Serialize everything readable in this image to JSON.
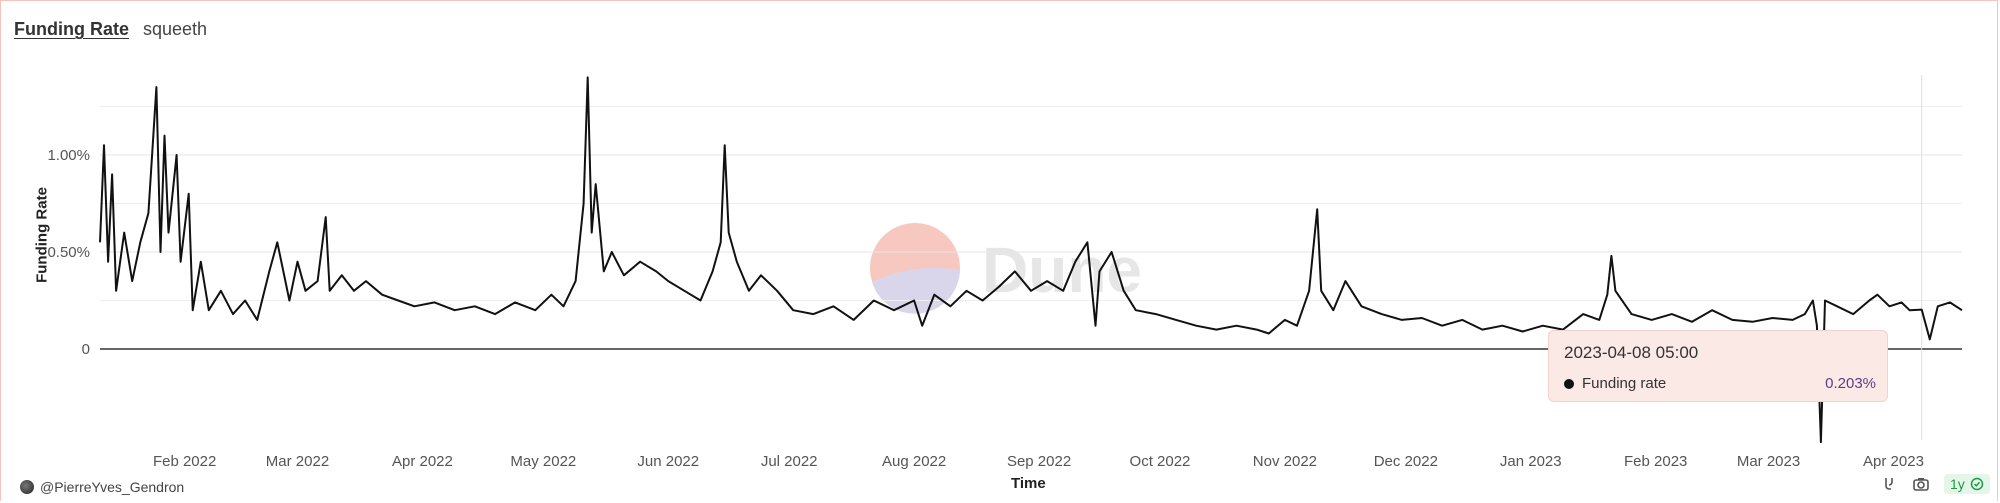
{
  "header": {
    "title": "Funding Rate",
    "subtitle": "squeeth"
  },
  "footer": {
    "author": "@PierreYves_Gendron",
    "range_badge": "1y"
  },
  "tooltip": {
    "date": "2023-04-08 05:00",
    "series_label": "Funding rate",
    "value": "0.203%"
  },
  "watermark": "Dune",
  "colors": {
    "line": "#111111",
    "frame": "#f2c6bd",
    "tooltip_bg": "#fbe9e6",
    "badge": "#1d9b47",
    "tooltip_value": "#5b3e8a"
  },
  "chart_data": {
    "type": "line",
    "xlabel": "Time",
    "ylabel": "Funding Rate",
    "x_ticks": [
      "Feb 2022",
      "Mar 2022",
      "Apr 2022",
      "May 2022",
      "Jun 2022",
      "Jul 2022",
      "Aug 2022",
      "Sep 2022",
      "Oct 2022",
      "Nov 2022",
      "Dec 2022",
      "Jan 2023",
      "Feb 2023",
      "Mar 2023",
      "Apr 2023"
    ],
    "y_ticks": [
      "0",
      "0.50%",
      "1.00%"
    ],
    "ylim": [
      -0.5,
      1.4
    ],
    "x_range": [
      "2022-01-11",
      "2023-04-18"
    ],
    "grid": true,
    "series": [
      {
        "points": [
          [
            "2022-01-11",
            0.55
          ],
          [
            "2022-01-12",
            1.05
          ],
          [
            "2022-01-13",
            0.45
          ],
          [
            "2022-01-14",
            0.9
          ],
          [
            "2022-01-15",
            0.3
          ],
          [
            "2022-01-17",
            0.6
          ],
          [
            "2022-01-19",
            0.35
          ],
          [
            "2022-01-21",
            0.55
          ],
          [
            "2022-01-23",
            0.7
          ],
          [
            "2022-01-25",
            1.35
          ],
          [
            "2022-01-26",
            0.5
          ],
          [
            "2022-01-27",
            1.1
          ],
          [
            "2022-01-28",
            0.6
          ],
          [
            "2022-01-30",
            1.0
          ],
          [
            "2022-01-31",
            0.45
          ],
          [
            "2022-02-02",
            0.8
          ],
          [
            "2022-02-03",
            0.2
          ],
          [
            "2022-02-05",
            0.45
          ],
          [
            "2022-02-07",
            0.2
          ],
          [
            "2022-02-10",
            0.3
          ],
          [
            "2022-02-13",
            0.18
          ],
          [
            "2022-02-16",
            0.25
          ],
          [
            "2022-02-19",
            0.15
          ],
          [
            "2022-02-22",
            0.4
          ],
          [
            "2022-02-24",
            0.55
          ],
          [
            "2022-02-27",
            0.25
          ],
          [
            "2022-03-01",
            0.45
          ],
          [
            "2022-03-03",
            0.3
          ],
          [
            "2022-03-06",
            0.35
          ],
          [
            "2022-03-08",
            0.68
          ],
          [
            "2022-03-09",
            0.3
          ],
          [
            "2022-03-12",
            0.38
          ],
          [
            "2022-03-15",
            0.3
          ],
          [
            "2022-03-18",
            0.35
          ],
          [
            "2022-03-22",
            0.28
          ],
          [
            "2022-03-26",
            0.25
          ],
          [
            "2022-03-30",
            0.22
          ],
          [
            "2022-04-04",
            0.24
          ],
          [
            "2022-04-09",
            0.2
          ],
          [
            "2022-04-14",
            0.22
          ],
          [
            "2022-04-19",
            0.18
          ],
          [
            "2022-04-24",
            0.24
          ],
          [
            "2022-04-29",
            0.2
          ],
          [
            "2022-05-03",
            0.28
          ],
          [
            "2022-05-06",
            0.22
          ],
          [
            "2022-05-09",
            0.35
          ],
          [
            "2022-05-11",
            0.75
          ],
          [
            "2022-05-12",
            1.4
          ],
          [
            "2022-05-13",
            0.6
          ],
          [
            "2022-05-14",
            0.85
          ],
          [
            "2022-05-16",
            0.4
          ],
          [
            "2022-05-18",
            0.5
          ],
          [
            "2022-05-21",
            0.38
          ],
          [
            "2022-05-25",
            0.45
          ],
          [
            "2022-05-29",
            0.4
          ],
          [
            "2022-06-01",
            0.35
          ],
          [
            "2022-06-05",
            0.3
          ],
          [
            "2022-06-09",
            0.25
          ],
          [
            "2022-06-12",
            0.4
          ],
          [
            "2022-06-14",
            0.55
          ],
          [
            "2022-06-15",
            1.05
          ],
          [
            "2022-06-16",
            0.6
          ],
          [
            "2022-06-18",
            0.45
          ],
          [
            "2022-06-21",
            0.3
          ],
          [
            "2022-06-24",
            0.38
          ],
          [
            "2022-06-28",
            0.3
          ],
          [
            "2022-07-02",
            0.2
          ],
          [
            "2022-07-07",
            0.18
          ],
          [
            "2022-07-12",
            0.22
          ],
          [
            "2022-07-17",
            0.15
          ],
          [
            "2022-07-22",
            0.25
          ],
          [
            "2022-07-27",
            0.2
          ],
          [
            "2022-08-01",
            0.25
          ],
          [
            "2022-08-03",
            0.12
          ],
          [
            "2022-08-06",
            0.28
          ],
          [
            "2022-08-10",
            0.22
          ],
          [
            "2022-08-14",
            0.3
          ],
          [
            "2022-08-18",
            0.25
          ],
          [
            "2022-08-22",
            0.32
          ],
          [
            "2022-08-26",
            0.4
          ],
          [
            "2022-08-30",
            0.3
          ],
          [
            "2022-09-03",
            0.35
          ],
          [
            "2022-09-07",
            0.3
          ],
          [
            "2022-09-10",
            0.45
          ],
          [
            "2022-09-13",
            0.55
          ],
          [
            "2022-09-15",
            0.12
          ],
          [
            "2022-09-16",
            0.4
          ],
          [
            "2022-09-19",
            0.5
          ],
          [
            "2022-09-22",
            0.3
          ],
          [
            "2022-09-25",
            0.2
          ],
          [
            "2022-09-30",
            0.18
          ],
          [
            "2022-10-05",
            0.15
          ],
          [
            "2022-10-10",
            0.12
          ],
          [
            "2022-10-15",
            0.1
          ],
          [
            "2022-10-20",
            0.12
          ],
          [
            "2022-10-25",
            0.1
          ],
          [
            "2022-10-28",
            0.08
          ],
          [
            "2022-11-01",
            0.15
          ],
          [
            "2022-11-04",
            0.12
          ],
          [
            "2022-11-07",
            0.3
          ],
          [
            "2022-11-09",
            0.72
          ],
          [
            "2022-11-10",
            0.3
          ],
          [
            "2022-11-13",
            0.2
          ],
          [
            "2022-11-16",
            0.35
          ],
          [
            "2022-11-20",
            0.22
          ],
          [
            "2022-11-25",
            0.18
          ],
          [
            "2022-11-30",
            0.15
          ],
          [
            "2022-12-05",
            0.16
          ],
          [
            "2022-12-10",
            0.12
          ],
          [
            "2022-12-15",
            0.15
          ],
          [
            "2022-12-20",
            0.1
          ],
          [
            "2022-12-25",
            0.12
          ],
          [
            "2022-12-30",
            0.09
          ],
          [
            "2023-01-04",
            0.12
          ],
          [
            "2023-01-09",
            0.1
          ],
          [
            "2023-01-14",
            0.18
          ],
          [
            "2023-01-18",
            0.15
          ],
          [
            "2023-01-20",
            0.28
          ],
          [
            "2023-01-21",
            0.48
          ],
          [
            "2023-01-22",
            0.3
          ],
          [
            "2023-01-26",
            0.18
          ],
          [
            "2023-01-31",
            0.15
          ],
          [
            "2023-02-05",
            0.18
          ],
          [
            "2023-02-10",
            0.14
          ],
          [
            "2023-02-15",
            0.2
          ],
          [
            "2023-02-20",
            0.15
          ],
          [
            "2023-02-25",
            0.14
          ],
          [
            "2023-03-02",
            0.16
          ],
          [
            "2023-03-07",
            0.15
          ],
          [
            "2023-03-10",
            0.18
          ],
          [
            "2023-03-12",
            0.25
          ],
          [
            "2023-03-13",
            0.12
          ],
          [
            "2023-03-14",
            -0.48
          ],
          [
            "2023-03-15",
            0.25
          ],
          [
            "2023-03-18",
            0.22
          ],
          [
            "2023-03-22",
            0.18
          ],
          [
            "2023-03-26",
            0.25
          ],
          [
            "2023-03-28",
            0.28
          ],
          [
            "2023-03-31",
            0.22
          ],
          [
            "2023-04-03",
            0.24
          ],
          [
            "2023-04-05",
            0.2
          ],
          [
            "2023-04-08",
            0.203
          ],
          [
            "2023-04-10",
            0.05
          ],
          [
            "2023-04-12",
            0.22
          ],
          [
            "2023-04-15",
            0.24
          ],
          [
            "2023-04-18",
            0.2
          ]
        ]
      }
    ]
  }
}
